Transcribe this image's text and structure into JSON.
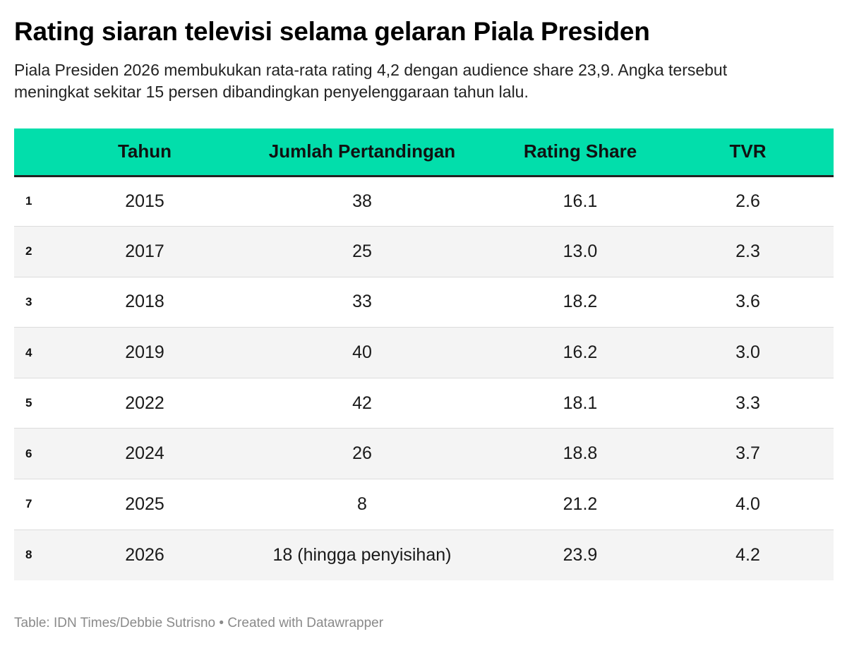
{
  "title": "Rating siaran televisi selama gelaran Piala Presiden",
  "subtitle": "Piala Presiden 2026 membukukan rata-rata rating 4,2 dengan audience share 23,9. Angka tersebut meningkat sekitar 15 persen dibandingkan penyelenggaraan tahun lalu.",
  "footer": "Table: IDN Times/Debbie Sutrisno • Created with Datawrapper",
  "colors": {
    "header_bg": "#02deab",
    "stripe_bg": "#f4f4f4"
  },
  "chart_data": {
    "type": "table",
    "columns": [
      "",
      "Tahun",
      "Jumlah Pertandingan",
      "Rating Share",
      "TVR"
    ],
    "rows": [
      [
        "1",
        "2015",
        "38",
        "16.1",
        "2.6"
      ],
      [
        "2",
        "2017",
        "25",
        "13.0",
        "2.3"
      ],
      [
        "3",
        "2018",
        "33",
        "18.2",
        "3.6"
      ],
      [
        "4",
        "2019",
        "40",
        "16.2",
        "3.0"
      ],
      [
        "5",
        "2022",
        "42",
        "18.1",
        "3.3"
      ],
      [
        "6",
        "2024",
        "26",
        "18.8",
        "3.7"
      ],
      [
        "7",
        "2025",
        "8",
        "21.2",
        "4.0"
      ],
      [
        "8",
        "2026",
        "18 (hingga penyisihan)",
        "23.9",
        "4.2"
      ]
    ]
  }
}
